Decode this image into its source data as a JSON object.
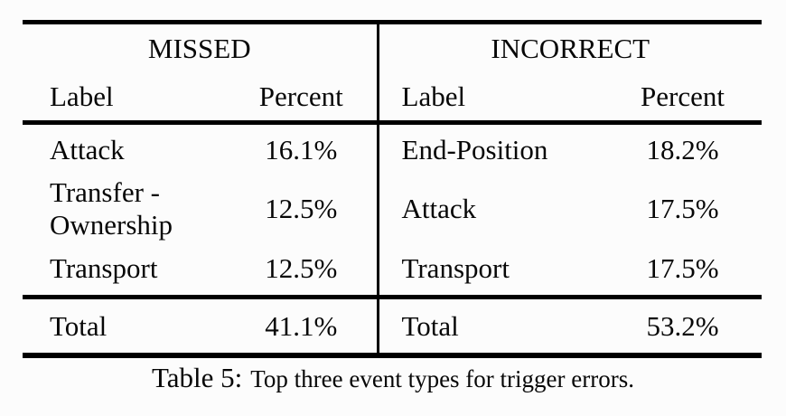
{
  "page": {
    "background_color": "#fcfcfc",
    "text_color": "#070707",
    "rule_color": "#000000"
  },
  "table": {
    "groups": [
      {
        "label": "MISSED"
      },
      {
        "label": "INCORRECT"
      }
    ],
    "columns": [
      "Label",
      "Percent",
      "Label",
      "Percent"
    ],
    "rows": [
      {
        "missed_label": "Attack",
        "missed_percent": "16.1%",
        "incorrect_label": "End-Position",
        "incorrect_percent": "18.2%"
      },
      {
        "missed_label": "Transfer - Ownership",
        "missed_percent": "12.5%",
        "incorrect_label": "Attack",
        "incorrect_percent": "17.5%"
      },
      {
        "missed_label": "Transport",
        "missed_percent": "12.5%",
        "incorrect_label": "Transport",
        "incorrect_percent": "17.5%"
      }
    ],
    "total_row": {
      "missed_label": "Total",
      "missed_percent": "41.1%",
      "incorrect_label": "Total",
      "incorrect_percent": "53.2%"
    }
  },
  "caption": {
    "label": "Table 5:",
    "text": "Top three event types for trigger errors."
  }
}
